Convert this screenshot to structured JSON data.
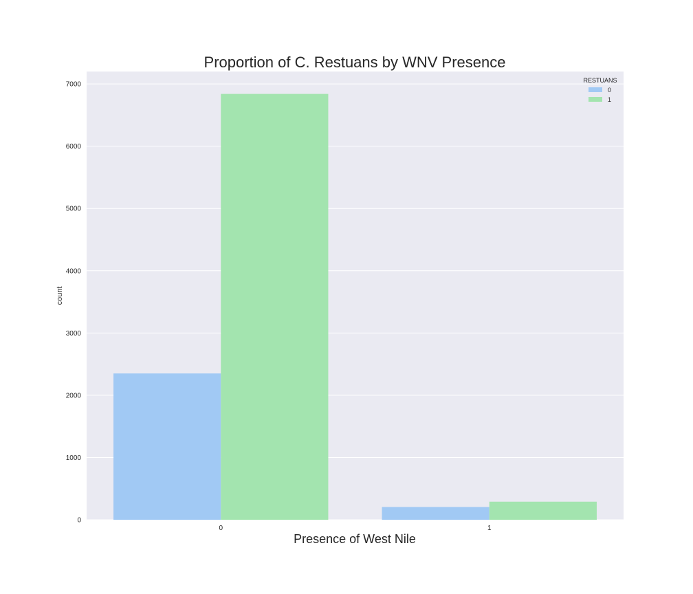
{
  "chart_data": {
    "type": "bar",
    "title": "Proportion of C. Restuans by WNV Presence",
    "xlabel": "Presence of West Nile",
    "ylabel": "count",
    "categories": [
      "0",
      "1"
    ],
    "series": [
      {
        "name": "0",
        "values": [
          2350,
          205
        ],
        "color": "#a1c9f4"
      },
      {
        "name": "1",
        "values": [
          6840,
          290
        ],
        "color": "#a3e4af"
      }
    ],
    "ylim": [
      0,
      7200
    ],
    "yticks": [
      0,
      1000,
      2000,
      3000,
      4000,
      5000,
      6000,
      7000
    ],
    "ytick_labels": [
      "0",
      "1000",
      "2000",
      "3000",
      "4000",
      "5000",
      "6000",
      "7000"
    ],
    "grid": true,
    "legend": {
      "title": "RESTUANS",
      "position": "top-right"
    },
    "background_color": "#eaeaf2",
    "grid_color": "#ffffff"
  }
}
